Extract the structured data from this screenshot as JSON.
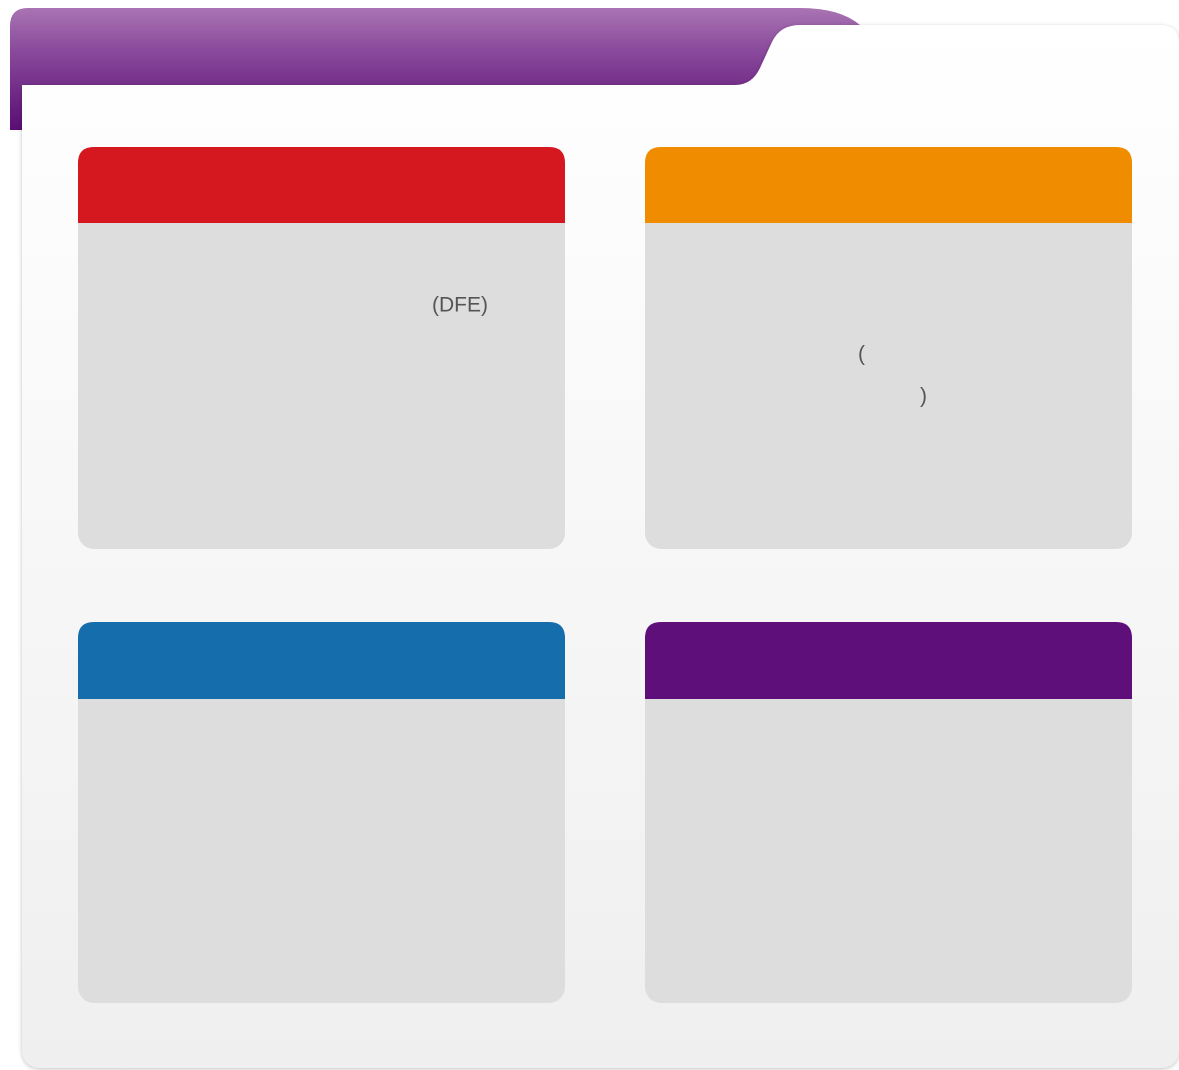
{
  "cards": [
    {
      "texts": [
        "(DFE)"
      ]
    },
    {
      "texts": [
        "(",
        ")"
      ]
    }
  ]
}
